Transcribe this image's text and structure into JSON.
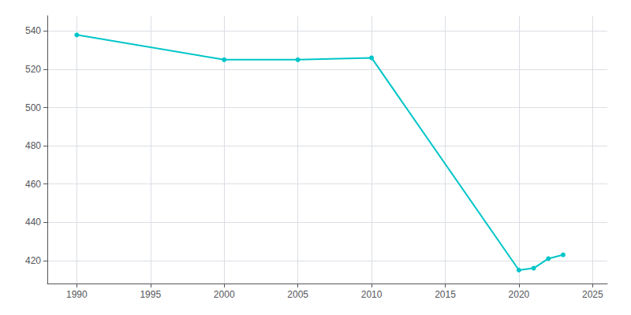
{
  "chart_data": {
    "type": "line",
    "x": [
      1990,
      2000,
      2005,
      2010,
      2020,
      2021,
      2022,
      2023
    ],
    "values": [
      538,
      525,
      525,
      526,
      415,
      416,
      421,
      423
    ],
    "color": "#00C5C8",
    "marker": "circle",
    "xlim": [
      1988,
      2026
    ],
    "xticks": [
      1990,
      1995,
      2000,
      2005,
      2010,
      2015,
      2020,
      2025
    ],
    "ylim": [
      408,
      548
    ],
    "yticks": [
      420,
      440,
      460,
      480,
      500,
      520,
      540
    ],
    "grid": true
  }
}
